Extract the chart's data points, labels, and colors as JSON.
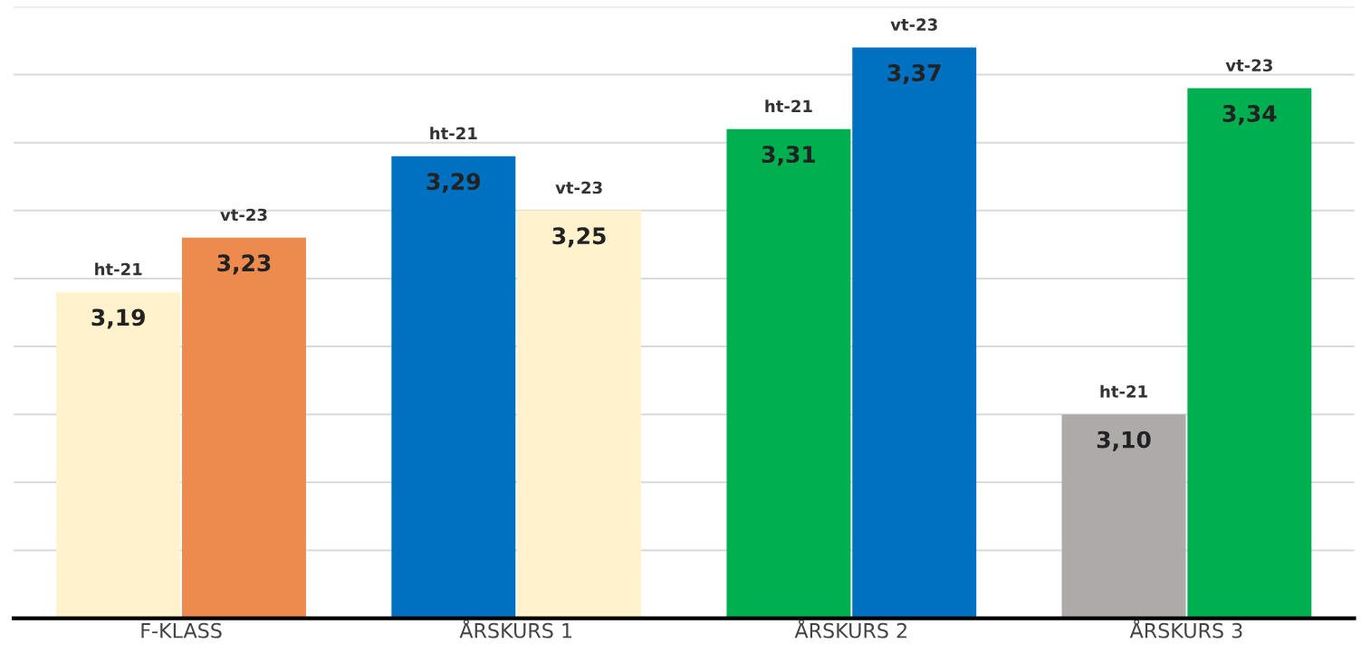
{
  "chart_data": {
    "type": "bar",
    "categories": [
      "F-KLASS",
      "ÅRSKURS 1",
      "ÅRSKURS 2",
      "ÅRSKURS 3"
    ],
    "series": [
      {
        "name": "ht-21",
        "colors": [
          "#fff2cc",
          "#0070c0",
          "#00b050",
          "#aeaaaa"
        ],
        "values": [
          3.19,
          3.29,
          3.31,
          3.1
        ],
        "value_labels": [
          "3,19",
          "3,29",
          "3,31",
          "3,10"
        ]
      },
      {
        "name": "vt-23",
        "colors": [
          "#ed8b4f",
          "#fff2cc",
          "#0070c0",
          "#00b050"
        ],
        "values": [
          3.23,
          3.25,
          3.37,
          3.34
        ],
        "value_labels": [
          "3,23",
          "3,25",
          "3,37",
          "3,34"
        ]
      }
    ],
    "ylim": [
      2.95,
      3.4
    ],
    "yticks": [
      {
        "value": 2.95,
        "label": null
      },
      {
        "value": 3.0,
        "label": null
      },
      {
        "value": 3.05,
        "label": null
      },
      {
        "value": 3.1,
        "label": null
      },
      {
        "value": 3.15,
        "label": null
      },
      {
        "value": 3.2,
        "label": null
      },
      {
        "value": 3.25,
        "label": null
      },
      {
        "value": 3.3,
        "label": null
      },
      {
        "value": 3.35,
        "label": null
      },
      {
        "value": 3.4,
        "label": null
      }
    ],
    "grid": "y",
    "tick_labels": "x"
  }
}
